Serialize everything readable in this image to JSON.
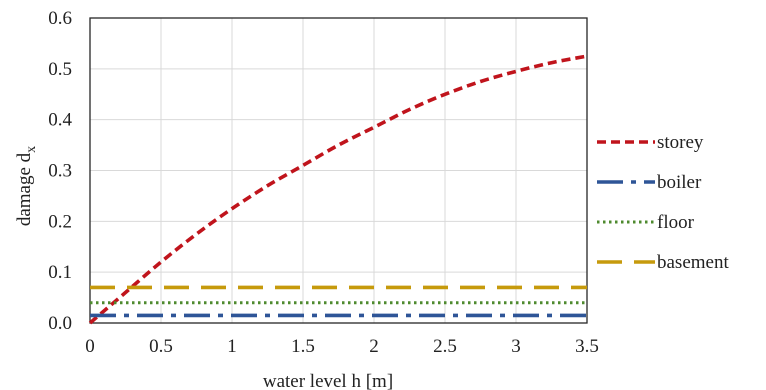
{
  "chart_data": {
    "type": "line",
    "xlabel": "water level h [m]",
    "ylabel_main": "damage d",
    "ylabel_sub": "x",
    "xlim": [
      0,
      3.5
    ],
    "ylim": [
      0,
      0.6
    ],
    "x_ticks": [
      "0",
      "0.5",
      "1",
      "1.5",
      "2",
      "2.5",
      "3",
      "3.5"
    ],
    "y_ticks": [
      "0.0",
      "0.1",
      "0.2",
      "0.3",
      "0.4",
      "0.5",
      "0.6"
    ],
    "grid": true,
    "legend_position": "right",
    "series": [
      {
        "name": "storey",
        "color": "#c0141c",
        "style": "dashed",
        "x": [
          0,
          0.25,
          0.5,
          0.75,
          1,
          1.25,
          1.5,
          1.75,
          2,
          2.25,
          2.5,
          2.75,
          3,
          3.25,
          3.5
        ],
        "y": [
          0,
          0.06,
          0.12,
          0.175,
          0.225,
          0.27,
          0.31,
          0.35,
          0.385,
          0.42,
          0.45,
          0.475,
          0.495,
          0.512,
          0.525
        ]
      },
      {
        "name": "boiler",
        "color": "#2e5597",
        "style": "dashdot",
        "x": [
          0,
          3.5
        ],
        "y": [
          0.015,
          0.015
        ]
      },
      {
        "name": "floor",
        "color": "#4e8a2e",
        "style": "dotted",
        "x": [
          0,
          3.5
        ],
        "y": [
          0.04,
          0.04
        ]
      },
      {
        "name": "basement",
        "color": "#c69a0c",
        "style": "longdash",
        "x": [
          0,
          3.5
        ],
        "y": [
          0.07,
          0.07
        ]
      }
    ]
  }
}
